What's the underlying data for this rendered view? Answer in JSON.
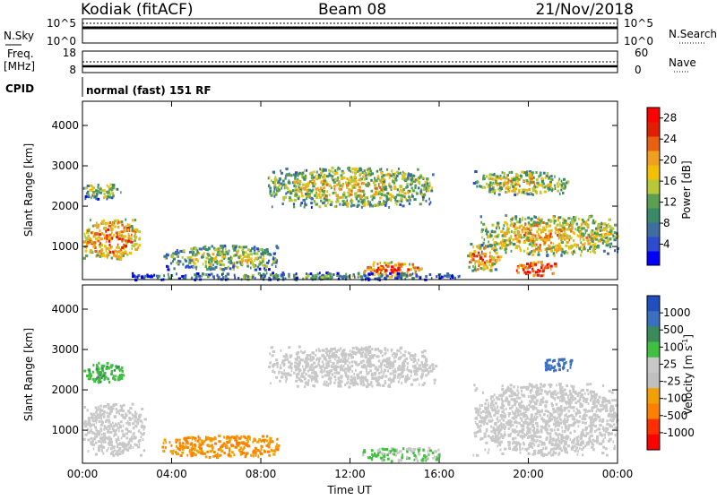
{
  "header": {
    "station": "Kodiak (fitACF)",
    "beam": "Beam 08",
    "date": "21/Nov/2018"
  },
  "noise_panel": {
    "left_label": "N.Sky",
    "right_label": "N.Search",
    "left_ticks": [
      "10^5",
      "10^0"
    ],
    "right_ticks": [
      "10^5",
      "10^0"
    ]
  },
  "freq_panel": {
    "left_label_1": "Freq.",
    "left_label_2": "[MHz]",
    "right_label": "Nave",
    "left_ticks": [
      "18",
      "8"
    ],
    "right_ticks": [
      "60",
      "0"
    ]
  },
  "cpid_panel": {
    "label": "CPID",
    "mode_text": "normal (fast) 151 RF"
  },
  "x_axis": {
    "label": "Time UT",
    "ticks": [
      "00:00",
      "04:00",
      "08:00",
      "12:00",
      "16:00",
      "20:00",
      "00:00"
    ]
  },
  "colors": {
    "power_scale": [
      "#0000ff",
      "#2e4bd0",
      "#3f6fa0",
      "#3a8a6a",
      "#5aa050",
      "#b8c838",
      "#f2c000",
      "#f0a020",
      "#e86010",
      "#e02000",
      "#ff0000"
    ],
    "velocity_scale": [
      "#2050c0",
      "#3a70c0",
      "#3a8a5a",
      "#40c040",
      "#c8c8c8",
      "#c0c0c0",
      "#f0a000",
      "#ff8000",
      "#ff3000",
      "#ff0000"
    ]
  },
  "chart_data": [
    {
      "type": "heatmap",
      "title": "",
      "xlabel": "Time UT",
      "ylabel": "Slant Range [km]",
      "xlim_hours": [
        0,
        24
      ],
      "ylim": [
        180,
        4600
      ],
      "yticks": [
        "1000",
        "2000",
        "3000",
        "4000"
      ],
      "colorbar": {
        "label": "Power [dB]",
        "ticks": [
          "4",
          "8",
          "12",
          "16",
          "20",
          "24",
          "28"
        ],
        "range": [
          0,
          30
        ]
      },
      "regions": [
        {
          "t0": 0.0,
          "t1": 2.6,
          "r0": 700,
          "r1": 1700,
          "power": 24
        },
        {
          "t0": 0.0,
          "t1": 1.7,
          "r0": 2200,
          "r1": 2600,
          "power": 16
        },
        {
          "t0": 3.6,
          "t1": 8.8,
          "r0": 450,
          "r1": 1050,
          "power": 16
        },
        {
          "t0": 8.3,
          "t1": 15.7,
          "r0": 2000,
          "r1": 3000,
          "power": 18
        },
        {
          "t0": 17.5,
          "t1": 21.8,
          "r0": 2300,
          "r1": 2900,
          "power": 18
        },
        {
          "t0": 17.2,
          "t1": 18.7,
          "r0": 420,
          "r1": 1100,
          "power": 24
        },
        {
          "t0": 19.4,
          "t1": 21.3,
          "r0": 300,
          "r1": 650,
          "power": 30
        },
        {
          "t0": 17.8,
          "t1": 24.0,
          "r0": 800,
          "r1": 1800,
          "power": 20
        },
        {
          "t0": 12.5,
          "t1": 15.2,
          "r0": 260,
          "r1": 650,
          "power": 26
        },
        {
          "t0": 2.0,
          "t1": 17.0,
          "r0": 200,
          "r1": 380,
          "power": 10
        }
      ]
    },
    {
      "type": "heatmap",
      "title": "",
      "xlabel": "Time UT",
      "ylabel": "Slant Range [km]",
      "xlim_hours": [
        0,
        24
      ],
      "ylim": [
        180,
        4600
      ],
      "yticks": [
        "1000",
        "2000",
        "3000",
        "4000"
      ],
      "colorbar": {
        "label": "Velocity [m s^-1]",
        "ticks": [
          "1000",
          "500",
          "100",
          "25",
          "-25",
          "-100",
          "-500",
          "-1000"
        ]
      },
      "regions": [
        {
          "t0": 0.0,
          "t1": 2.8,
          "r0": 400,
          "r1": 1700,
          "velocity": 0
        },
        {
          "t0": 0.0,
          "t1": 1.8,
          "r0": 2200,
          "r1": 2700,
          "velocity": 50
        },
        {
          "t0": 3.5,
          "t1": 8.8,
          "r0": 350,
          "r1": 900,
          "velocity": -300
        },
        {
          "t0": 8.3,
          "t1": 15.8,
          "r0": 2100,
          "r1": 3100,
          "velocity": 0
        },
        {
          "t0": 17.5,
          "t1": 24.0,
          "r0": 400,
          "r1": 2200,
          "velocity": 0
        },
        {
          "t0": 20.5,
          "t1": 22.0,
          "r0": 2500,
          "r1": 2800,
          "velocity": 600
        },
        {
          "t0": 12.5,
          "t1": 16.0,
          "r0": 250,
          "r1": 600,
          "velocity": 30
        }
      ]
    }
  ]
}
